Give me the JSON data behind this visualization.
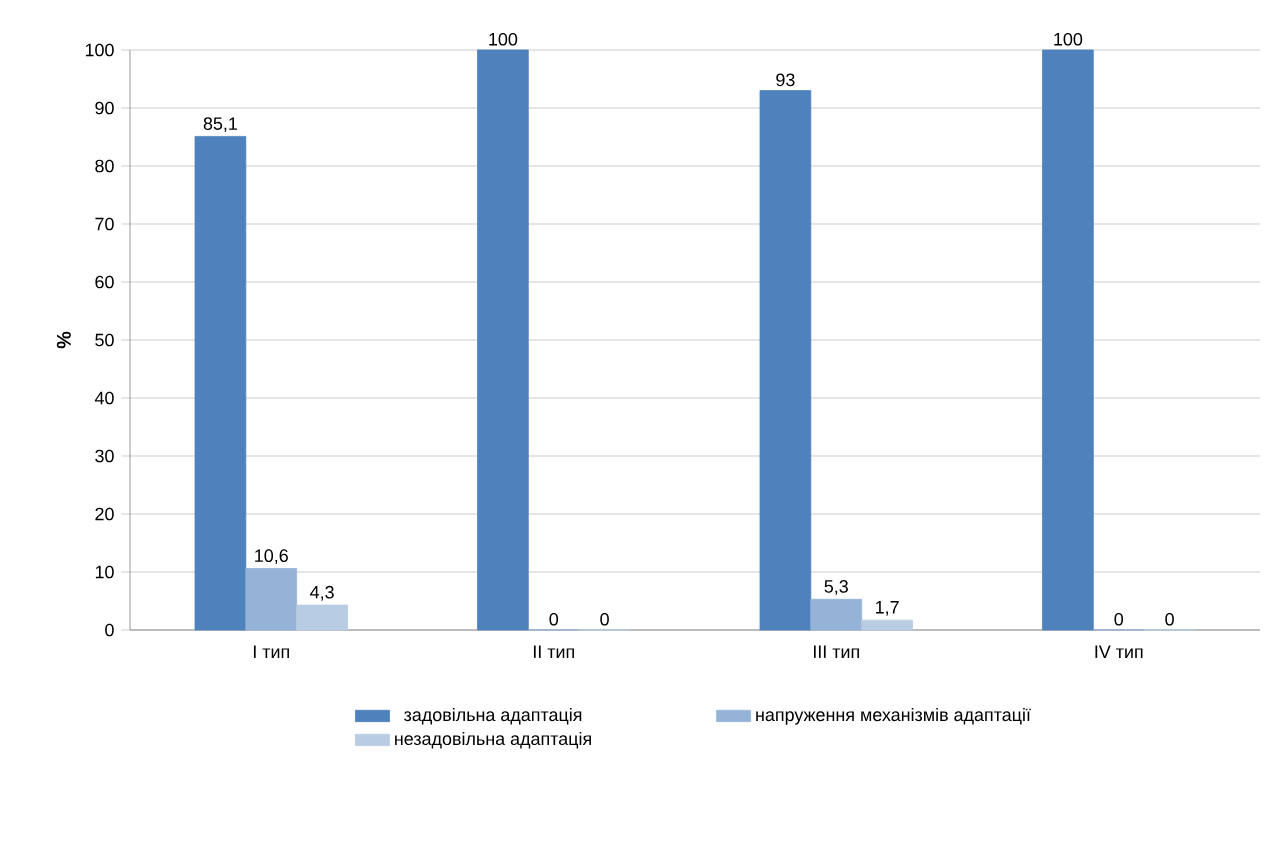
{
  "chart_data": {
    "type": "bar",
    "ylabel": "%",
    "categories": [
      "I тип",
      "II тип",
      "III тип",
      "IV тип"
    ],
    "series": [
      {
        "name": "задовільна адаптація",
        "color": "#4f81bd",
        "values": [
          85.1,
          100,
          93,
          100
        ],
        "value_labels": [
          "85,1",
          "100",
          "93",
          "100"
        ]
      },
      {
        "name": "напруження механізмів адаптації",
        "color": "#95b3d7",
        "values": [
          10.6,
          0,
          5.3,
          0
        ],
        "value_labels": [
          "10,6",
          "0",
          "5,3",
          "0"
        ]
      },
      {
        "name": "незадовільна адаптація",
        "color": "#b8cce4",
        "values": [
          4.3,
          0,
          1.7,
          0
        ],
        "value_labels": [
          "4,3",
          "0",
          "1,7",
          "0"
        ]
      }
    ],
    "ylim": [
      0,
      100
    ],
    "yticks": [
      0,
      10,
      20,
      30,
      40,
      50,
      60,
      70,
      80,
      90,
      100
    ],
    "grid": "y",
    "legend": "bottom"
  }
}
